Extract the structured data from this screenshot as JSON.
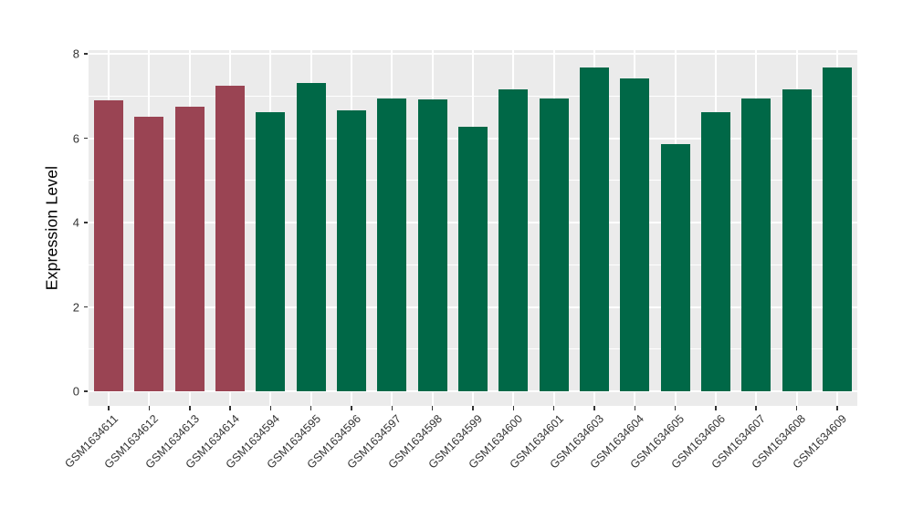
{
  "chart_data": {
    "type": "bar",
    "title": "",
    "xlabel": "",
    "ylabel": "Expression Level",
    "ylim": [
      0,
      8.09
    ],
    "yticks_major": [
      0,
      2,
      4,
      6,
      8
    ],
    "yticks_minor": [
      1,
      3,
      5,
      7
    ],
    "grid": true,
    "legend": false,
    "panel_bg": "#EBEBEB",
    "grid_color": "#FFFFFF",
    "axis_text_color": "#333333",
    "categories": [
      "GSM1634611",
      "GSM1634612",
      "GSM1634613",
      "GSM1634614",
      "GSM1634594",
      "GSM1634595",
      "GSM1634596",
      "GSM1634597",
      "GSM1634598",
      "GSM1634599",
      "GSM1634600",
      "GSM1634601",
      "GSM1634603",
      "GSM1634604",
      "GSM1634605",
      "GSM1634606",
      "GSM1634607",
      "GSM1634608",
      "GSM1634609"
    ],
    "values": [
      6.89,
      6.5,
      6.75,
      7.24,
      6.62,
      7.31,
      6.67,
      6.95,
      6.92,
      6.27,
      7.16,
      6.95,
      7.68,
      7.42,
      5.85,
      6.62,
      6.95,
      7.16,
      7.68
    ],
    "groups": [
      "a",
      "a",
      "a",
      "a",
      "b",
      "b",
      "b",
      "b",
      "b",
      "b",
      "b",
      "b",
      "b",
      "b",
      "b",
      "b",
      "b",
      "b",
      "b"
    ],
    "group_colors": {
      "a": "#9A4453",
      "b": "#006847"
    }
  }
}
